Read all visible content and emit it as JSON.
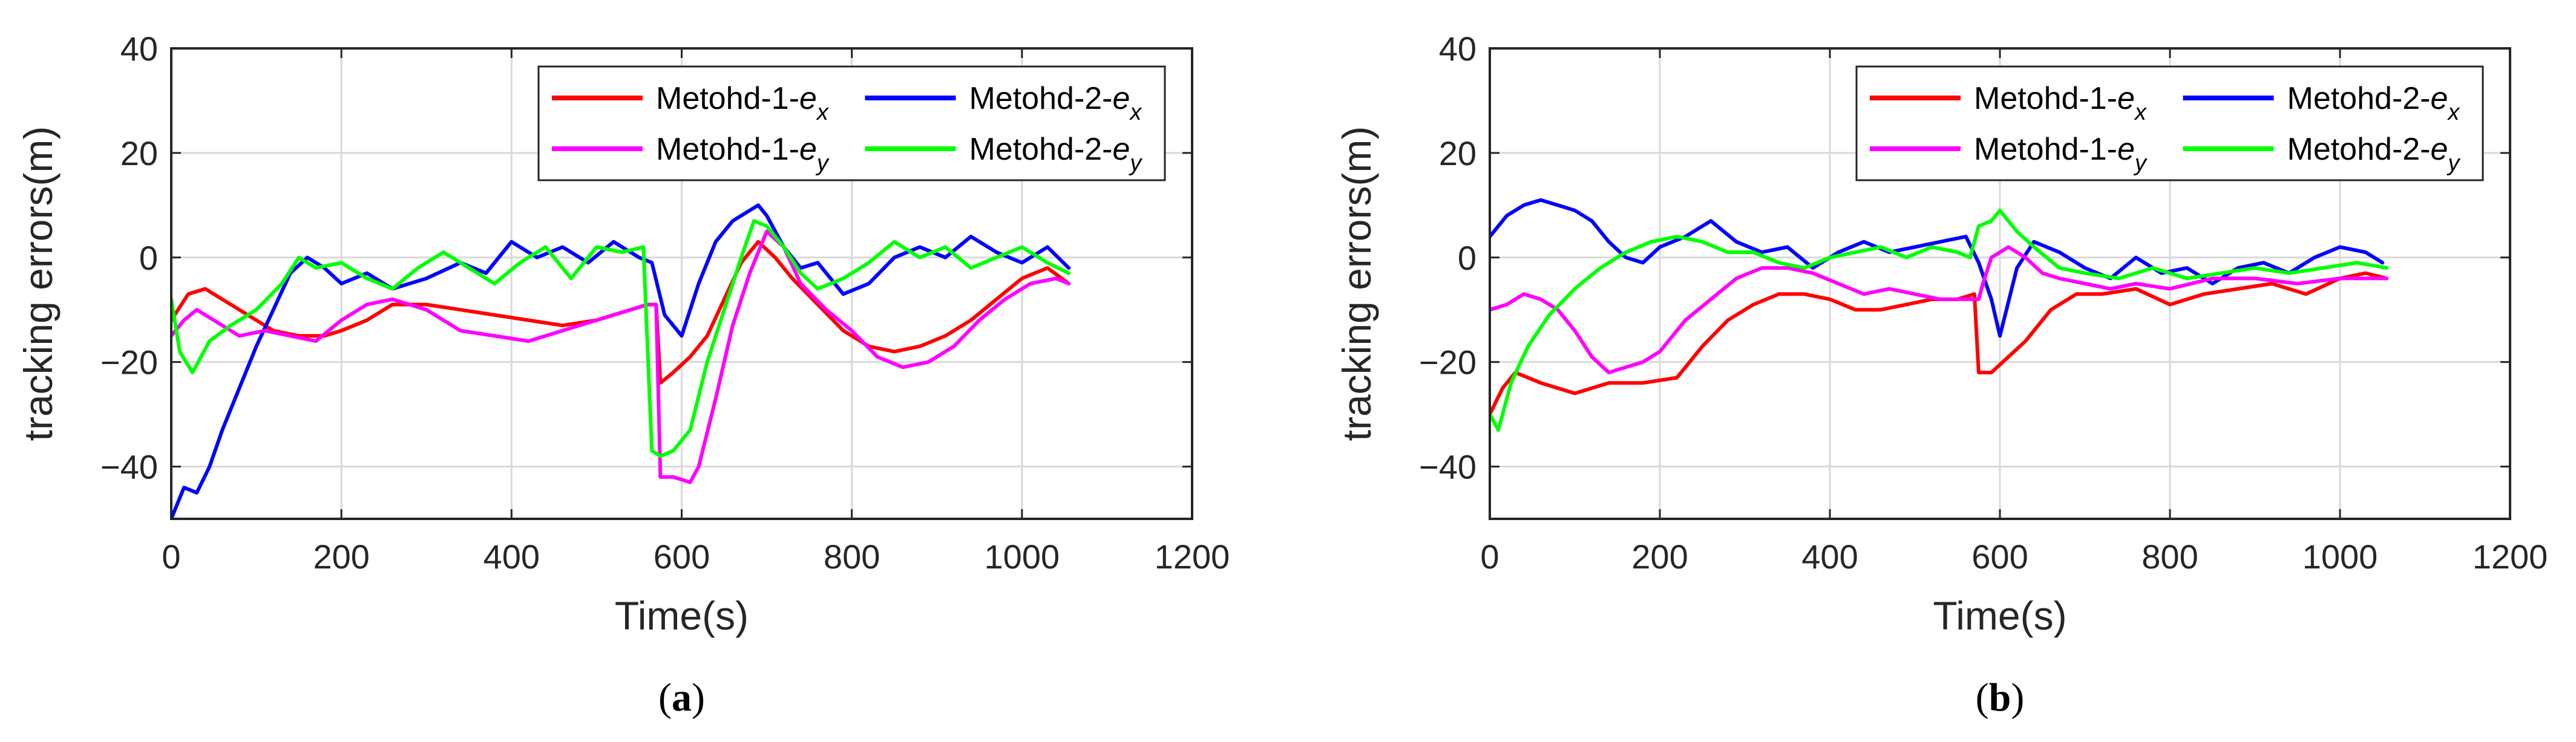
{
  "colors": {
    "method1_ex": "#ff0000",
    "method2_ex": "#0000ff",
    "method1_ey": "#ff00ff",
    "method2_ey": "#00ff00",
    "grid": "#d9d9d9",
    "axis": "#262626"
  },
  "chart_data": [
    {
      "type": "line",
      "panel": "a",
      "caption": {
        "open": "(",
        "letter": "a",
        "close": ")"
      },
      "xlabel": "Time(s)",
      "ylabel": "tracking errors(m)",
      "xlim": [
        0,
        1200
      ],
      "ylim": [
        -50,
        40
      ],
      "xticks": [
        "0",
        "200",
        "400",
        "600",
        "800",
        "1000",
        "1200"
      ],
      "yticks": [
        "40",
        "20",
        "0",
        "−20",
        "−40"
      ],
      "grid": true,
      "legend_position": "top-right",
      "series": [
        {
          "name": "Metohd-1-e_x",
          "label_main": "Metohd-1-",
          "label_var": "e",
          "label_sub": "x",
          "color": "#ff0000",
          "x": [
            0,
            20,
            40,
            60,
            80,
            100,
            120,
            150,
            180,
            200,
            230,
            260,
            300,
            340,
            380,
            420,
            460,
            500,
            540,
            560,
            570,
            575,
            590,
            610,
            630,
            650,
            670,
            690,
            710,
            730,
            760,
            790,
            820,
            850,
            880,
            910,
            940,
            970,
            1000,
            1030,
            1055
          ],
          "values": [
            -12,
            -7,
            -6,
            -8,
            -10,
            -12,
            -14,
            -15,
            -15,
            -14,
            -12,
            -9,
            -9,
            -10,
            -11,
            -12,
            -13,
            -12,
            -10,
            -9,
            -9,
            -24,
            -22,
            -19,
            -15,
            -8,
            -1,
            3,
            0,
            -4,
            -9,
            -14,
            -17,
            -18,
            -17,
            -15,
            -12,
            -8,
            -4,
            -2,
            -5
          ]
        },
        {
          "name": "Metohd-2-e_x",
          "label_main": "Metohd-2-",
          "label_var": "e",
          "label_sub": "x",
          "color": "#0000ff",
          "x": [
            0,
            15,
            30,
            45,
            60,
            80,
            100,
            120,
            140,
            160,
            180,
            200,
            230,
            260,
            300,
            340,
            370,
            400,
            430,
            460,
            490,
            520,
            550,
            565,
            580,
            600,
            620,
            640,
            660,
            680,
            690,
            700,
            720,
            740,
            760,
            790,
            820,
            850,
            880,
            910,
            940,
            970,
            1000,
            1030,
            1055
          ],
          "values": [
            -50,
            -44,
            -45,
            -40,
            -33,
            -25,
            -17,
            -10,
            -3,
            0,
            -2,
            -5,
            -3,
            -6,
            -4,
            -1,
            -3,
            3,
            0,
            2,
            -1,
            3,
            0,
            -1,
            -11,
            -15,
            -5,
            3,
            7,
            9,
            10,
            8,
            2,
            -2,
            -1,
            -7,
            -5,
            0,
            2,
            0,
            4,
            1,
            -1,
            2,
            -2
          ]
        },
        {
          "name": "Metohd-1-e_y",
          "label_main": "Metohd-1-",
          "label_var": "e",
          "label_sub": "y",
          "color": "#ff00ff",
          "x": [
            0,
            15,
            30,
            50,
            80,
            110,
            140,
            170,
            200,
            230,
            260,
            300,
            340,
            380,
            420,
            460,
            500,
            540,
            560,
            570,
            575,
            590,
            610,
            620,
            640,
            660,
            680,
            700,
            720,
            740,
            770,
            800,
            830,
            860,
            890,
            920,
            950,
            980,
            1010,
            1040,
            1055
          ],
          "values": [
            -15,
            -12,
            -10,
            -12,
            -15,
            -14,
            -15,
            -16,
            -12,
            -9,
            -8,
            -10,
            -14,
            -15,
            -16,
            -14,
            -12,
            -10,
            -9,
            -9,
            -42,
            -42,
            -43,
            -40,
            -27,
            -13,
            -3,
            5,
            2,
            -5,
            -10,
            -14,
            -19,
            -21,
            -20,
            -17,
            -12,
            -8,
            -5,
            -4,
            -5
          ]
        },
        {
          "name": "Metohd-2-e_y",
          "label_main": "Metohd-2-",
          "label_var": "e",
          "label_sub": "y",
          "color": "#00ff00",
          "x": [
            0,
            10,
            25,
            45,
            70,
            100,
            130,
            150,
            170,
            200,
            230,
            260,
            290,
            320,
            350,
            380,
            410,
            440,
            470,
            500,
            530,
            555,
            565,
            575,
            590,
            610,
            630,
            650,
            670,
            685,
            700,
            720,
            740,
            760,
            790,
            820,
            850,
            880,
            910,
            940,
            970,
            1000,
            1030,
            1055
          ],
          "values": [
            -8,
            -18,
            -22,
            -16,
            -13,
            -10,
            -5,
            0,
            -2,
            -1,
            -4,
            -6,
            -2,
            1,
            -2,
            -5,
            -1,
            2,
            -4,
            2,
            1,
            2,
            -37,
            -38,
            -37,
            -33,
            -20,
            -10,
            0,
            7,
            6,
            2,
            -3,
            -6,
            -4,
            -1,
            3,
            0,
            2,
            -2,
            0,
            2,
            -1,
            -3
          ]
        }
      ]
    },
    {
      "type": "line",
      "panel": "b",
      "caption": {
        "open": "(",
        "letter": "b",
        "close": ")"
      },
      "xlabel": "Time(s)",
      "ylabel": "tracking errors(m)",
      "xlim": [
        0,
        1200
      ],
      "ylim": [
        -50,
        40
      ],
      "xticks": [
        "0",
        "200",
        "400",
        "600",
        "800",
        "1000",
        "1200"
      ],
      "yticks": [
        "40",
        "20",
        "0",
        "−20",
        "−40"
      ],
      "grid": true,
      "legend_position": "top-right",
      "series": [
        {
          "name": "Metohd-1-e_x",
          "label_main": "Metohd-1-",
          "label_var": "e",
          "label_sub": "x",
          "color": "#ff0000",
          "x": [
            0,
            15,
            30,
            60,
            100,
            140,
            180,
            220,
            250,
            280,
            310,
            340,
            370,
            400,
            430,
            460,
            490,
            520,
            550,
            570,
            575,
            590,
            610,
            630,
            660,
            690,
            720,
            760,
            800,
            840,
            880,
            920,
            960,
            1000,
            1030,
            1055
          ],
          "values": [
            -30,
            -25,
            -22,
            -24,
            -26,
            -24,
            -24,
            -23,
            -17,
            -12,
            -9,
            -7,
            -7,
            -8,
            -10,
            -10,
            -9,
            -8,
            -8,
            -7,
            -22,
            -22,
            -19,
            -16,
            -10,
            -7,
            -7,
            -6,
            -9,
            -7,
            -6,
            -5,
            -7,
            -4,
            -3,
            -4
          ]
        },
        {
          "name": "Metohd-2-e_x",
          "label_main": "Metohd-2-",
          "label_var": "e",
          "label_sub": "x",
          "color": "#0000ff",
          "x": [
            0,
            20,
            40,
            60,
            80,
            100,
            120,
            140,
            160,
            180,
            200,
            230,
            260,
            290,
            320,
            350,
            380,
            410,
            440,
            470,
            500,
            530,
            560,
            575,
            590,
            600,
            620,
            640,
            670,
            700,
            730,
            760,
            790,
            820,
            850,
            880,
            910,
            940,
            970,
            1000,
            1030,
            1050
          ],
          "values": [
            4,
            8,
            10,
            11,
            10,
            9,
            7,
            3,
            0,
            -1,
            2,
            4,
            7,
            3,
            1,
            2,
            -2,
            1,
            3,
            1,
            2,
            3,
            4,
            -1,
            -8,
            -15,
            -2,
            3,
            1,
            -2,
            -4,
            0,
            -3,
            -2,
            -5,
            -2,
            -1,
            -3,
            0,
            2,
            1,
            -1
          ]
        },
        {
          "name": "Metohd-1-e_y",
          "label_main": "Metohd-1-",
          "label_var": "e",
          "label_sub": "y",
          "color": "#ff00ff",
          "x": [
            0,
            20,
            40,
            60,
            80,
            100,
            120,
            140,
            160,
            180,
            200,
            230,
            260,
            290,
            320,
            350,
            380,
            410,
            440,
            470,
            500,
            530,
            560,
            575,
            580,
            590,
            610,
            630,
            650,
            670,
            700,
            730,
            760,
            800,
            850,
            900,
            950,
            1000,
            1055
          ],
          "values": [
            -10,
            -9,
            -7,
            -8,
            -10,
            -14,
            -19,
            -22,
            -21,
            -20,
            -18,
            -12,
            -8,
            -4,
            -2,
            -2,
            -3,
            -5,
            -7,
            -6,
            -7,
            -8,
            -8,
            -8,
            -5,
            0,
            2,
            0,
            -3,
            -4,
            -5,
            -6,
            -5,
            -6,
            -4,
            -4,
            -5,
            -4,
            -4
          ]
        },
        {
          "name": "Metohd-2-e_y",
          "label_main": "Metohd-2-",
          "label_var": "e",
          "label_sub": "y",
          "color": "#00ff00",
          "x": [
            0,
            10,
            25,
            45,
            70,
            100,
            130,
            160,
            190,
            220,
            250,
            280,
            310,
            340,
            370,
            400,
            430,
            460,
            490,
            520,
            550,
            565,
            575,
            590,
            600,
            620,
            640,
            670,
            700,
            740,
            780,
            820,
            860,
            900,
            940,
            980,
            1020,
            1055
          ],
          "values": [
            -30,
            -33,
            -24,
            -17,
            -11,
            -6,
            -2,
            1,
            3,
            4,
            3,
            1,
            1,
            -1,
            -2,
            0,
            1,
            2,
            0,
            2,
            1,
            0,
            6,
            7,
            9,
            5,
            2,
            -2,
            -3,
            -4,
            -2,
            -4,
            -3,
            -2,
            -3,
            -2,
            -1,
            -2
          ]
        }
      ]
    }
  ]
}
